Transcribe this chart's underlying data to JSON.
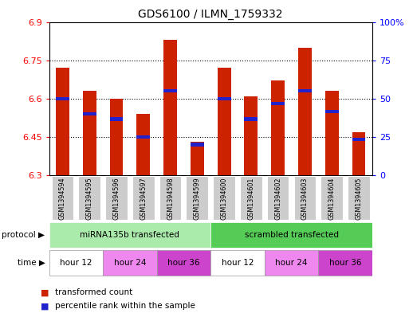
{
  "title": "GDS6100 / ILMN_1759332",
  "samples": [
    "GSM1394594",
    "GSM1394595",
    "GSM1394596",
    "GSM1394597",
    "GSM1394598",
    "GSM1394599",
    "GSM1394600",
    "GSM1394601",
    "GSM1394602",
    "GSM1394603",
    "GSM1394604",
    "GSM1394605"
  ],
  "bar_values": [
    6.72,
    6.63,
    6.6,
    6.54,
    6.83,
    6.43,
    6.72,
    6.61,
    6.67,
    6.8,
    6.63,
    6.47
  ],
  "bar_base": 6.3,
  "percentile_values": [
    6.6,
    6.54,
    6.52,
    6.45,
    6.63,
    6.42,
    6.6,
    6.52,
    6.58,
    6.63,
    6.55,
    6.44
  ],
  "ylim": [
    6.3,
    6.9
  ],
  "yticks": [
    6.3,
    6.45,
    6.6,
    6.75,
    6.9
  ],
  "ytick_labels": [
    "6.3",
    "6.45",
    "6.6",
    "6.75",
    "6.9"
  ],
  "y2ticks": [
    0,
    25,
    50,
    75,
    100
  ],
  "y2tick_labels": [
    "0",
    "25",
    "50",
    "75",
    "100%"
  ],
  "bar_color": "#cc2200",
  "percentile_color": "#2222cc",
  "protocol_groups": [
    {
      "label": "miRNA135b transfected",
      "start": 0,
      "end": 6,
      "color": "#aaeaaa"
    },
    {
      "label": "scrambled transfected",
      "start": 6,
      "end": 12,
      "color": "#55cc55"
    }
  ],
  "time_groups": [
    {
      "label": "hour 12",
      "start": 0,
      "end": 2,
      "color": "#ffffff"
    },
    {
      "label": "hour 24",
      "start": 2,
      "end": 4,
      "color": "#ee88ee"
    },
    {
      "label": "hour 36",
      "start": 4,
      "end": 6,
      "color": "#cc44cc"
    },
    {
      "label": "hour 12",
      "start": 6,
      "end": 8,
      "color": "#ffffff"
    },
    {
      "label": "hour 24",
      "start": 8,
      "end": 10,
      "color": "#ee88ee"
    },
    {
      "label": "hour 36",
      "start": 10,
      "end": 12,
      "color": "#cc44cc"
    }
  ],
  "legend_red": "transformed count",
  "legend_blue": "percentile rank within the sample",
  "protocol_label": "protocol",
  "time_label": "time",
  "sample_box_color": "#cccccc",
  "bar_width": 0.5
}
